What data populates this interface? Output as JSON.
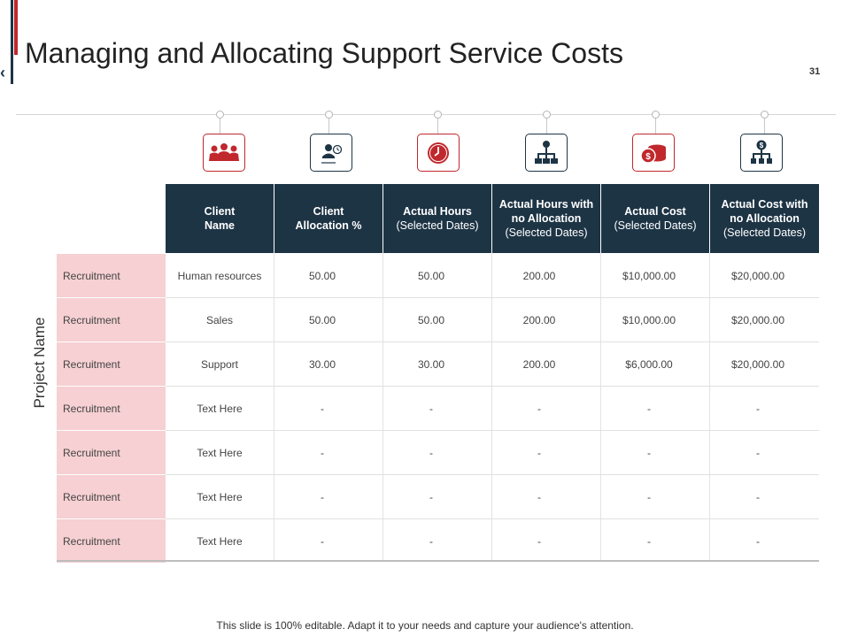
{
  "page": {
    "title": "Managing and Allocating Support Service Costs",
    "page_number": "31",
    "back_arrow": "‹",
    "footer": "This slide is 100% editable. Adapt it to your needs and capture your audience's attention."
  },
  "colors": {
    "dark": "#1d3445",
    "red": "#c0282d",
    "row_label_bg": "#f6d0d2"
  },
  "icons": [
    "people-icon",
    "user-clock-icon",
    "clock-icon",
    "org-chart-icon",
    "coins-icon",
    "money-hierarchy-icon"
  ],
  "table": {
    "side_label": "Project Name",
    "headers": [
      {
        "bold": "Client Name",
        "sub": ""
      },
      {
        "bold": "Client Allocation %",
        "sub": ""
      },
      {
        "bold": "Actual Hours",
        "sub": "(Selected Dates)"
      },
      {
        "bold": "Actual Hours with no Allocation",
        "sub": "(Selected Dates)"
      },
      {
        "bold": "Actual Cost",
        "sub": "(Selected Dates)"
      },
      {
        "bold": "Actual Cost with no Allocation",
        "sub": "(Selected Dates)"
      }
    ],
    "rows": [
      {
        "label": "Recruitment",
        "cells": [
          "Human resources",
          "50.00",
          "50.00",
          "200.00",
          "$10,000.00",
          "$20,000.00"
        ]
      },
      {
        "label": "Recruitment",
        "cells": [
          "Sales",
          "50.00",
          "50.00",
          "200.00",
          "$10,000.00",
          "$20,000.00"
        ]
      },
      {
        "label": "Recruitment",
        "cells": [
          "Support",
          "30.00",
          "30.00",
          "200.00",
          "$6,000.00",
          "$20,000.00"
        ]
      },
      {
        "label": "Recruitment",
        "cells": [
          "Text Here",
          "-",
          "-",
          "-",
          "-",
          "-"
        ]
      },
      {
        "label": "Recruitment",
        "cells": [
          "Text Here",
          "-",
          "-",
          "-",
          "-",
          "-"
        ]
      },
      {
        "label": "Recruitment",
        "cells": [
          "Text Here",
          "-",
          "-",
          "-",
          "-",
          "-"
        ]
      },
      {
        "label": "Recruitment",
        "cells": [
          "Text Here",
          "-",
          "-",
          "-",
          "-",
          "-"
        ]
      }
    ]
  }
}
